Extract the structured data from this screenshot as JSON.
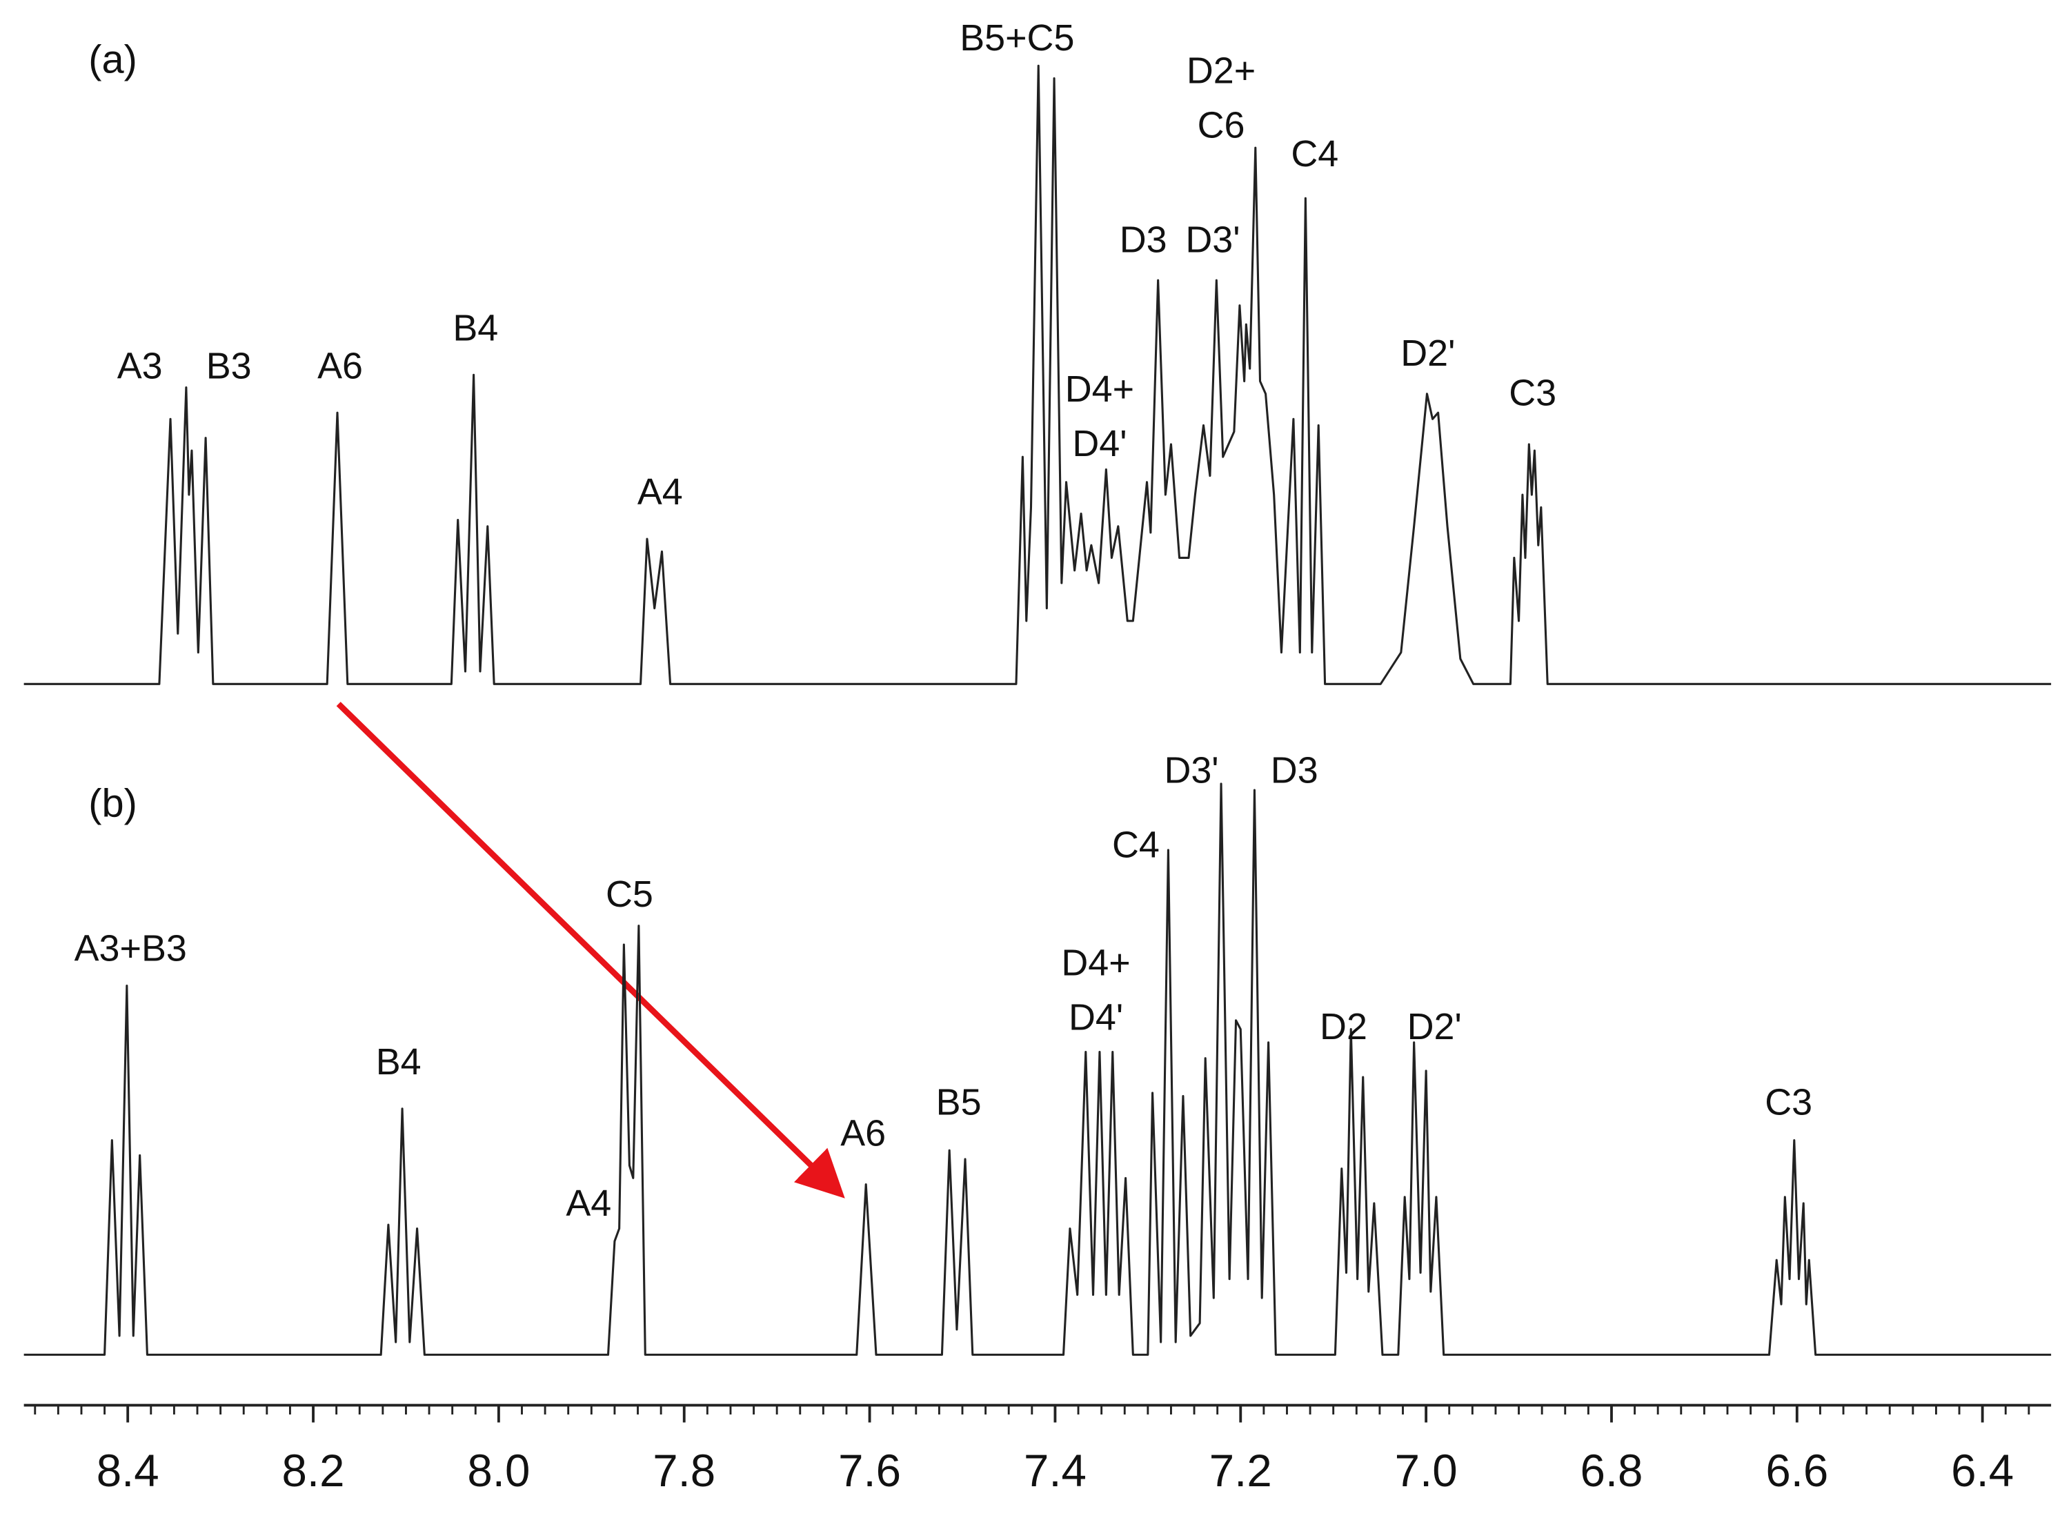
{
  "chart_data": [
    {
      "type": "line",
      "panel_label": "(a)",
      "color": "#222222",
      "xlim": [
        8.512,
        6.326
      ],
      "ylim": [
        0,
        100
      ],
      "x": [
        8.512,
        8.366,
        8.354,
        8.346,
        8.337,
        8.334,
        8.331,
        8.324,
        8.316,
        8.308,
        8.185,
        8.174,
        8.163,
        8.051,
        8.044,
        8.036,
        8.027,
        8.02,
        8.012,
        8.005,
        7.847,
        7.84,
        7.832,
        7.824,
        7.815,
        7.442,
        7.435,
        7.431,
        7.426,
        7.418,
        7.409,
        7.401,
        7.393,
        7.388,
        7.379,
        7.372,
        7.366,
        7.361,
        7.353,
        7.345,
        7.339,
        7.332,
        7.322,
        7.316,
        7.301,
        7.297,
        7.289,
        7.281,
        7.275,
        7.266,
        7.256,
        7.249,
        7.24,
        7.233,
        7.226,
        7.219,
        7.213,
        7.207,
        7.201,
        7.196,
        7.194,
        7.19,
        7.184,
        7.179,
        7.173,
        7.164,
        7.156,
        7.143,
        7.136,
        7.13,
        7.123,
        7.116,
        7.109,
        7.049,
        7.027,
        7.013,
        6.999,
        6.993,
        6.987,
        6.977,
        6.963,
        6.949,
        6.909,
        6.905,
        6.9,
        6.896,
        6.893,
        6.889,
        6.886,
        6.883,
        6.879,
        6.876,
        6.872,
        6.869,
        6.326
      ],
      "values": [
        0,
        0,
        42,
        8,
        47,
        30,
        37,
        5,
        39,
        0,
        0,
        43,
        0,
        0,
        26,
        2,
        49,
        2,
        25,
        0,
        0,
        23,
        12,
        21,
        0,
        0,
        36,
        10,
        28,
        98,
        12,
        96,
        16,
        32,
        18,
        27,
        18,
        22,
        16,
        34,
        20,
        25,
        10,
        10,
        32,
        24,
        64,
        30,
        38,
        20,
        20,
        30,
        41,
        33,
        64,
        36,
        38,
        40,
        60,
        48,
        57,
        50,
        85,
        48,
        46,
        30,
        5,
        42,
        5,
        77,
        5,
        41,
        0,
        0,
        5,
        25,
        46,
        42,
        43,
        25,
        4,
        0,
        0,
        20,
        10,
        30,
        20,
        38,
        30,
        37,
        22,
        28,
        12,
        0,
        0
      ],
      "annotations": [
        {
          "lines": [
            "A3"
          ],
          "x": 8.387,
          "y": 50
        },
        {
          "lines": [
            "B3"
          ],
          "x": 8.291,
          "y": 50
        },
        {
          "lines": [
            "A6"
          ],
          "x": 8.171,
          "y": 50
        },
        {
          "lines": [
            "B4"
          ],
          "x": 8.025,
          "y": 56
        },
        {
          "lines": [
            "A4"
          ],
          "x": 7.826,
          "y": 30
        },
        {
          "lines": [
            "B5+C5"
          ],
          "x": 7.441,
          "y": 102
        },
        {
          "lines": [
            "D4+",
            "D4'"
          ],
          "x": 7.352,
          "y": 46.3
        },
        {
          "lines": [
            "D3"
          ],
          "x": 7.305,
          "y": 70
        },
        {
          "lines": [
            "D3'"
          ],
          "x": 7.23,
          "y": 70
        },
        {
          "lines": [
            "D2+",
            "C6"
          ],
          "x": 7.221,
          "y": 96.8
        },
        {
          "lines": [
            "C4"
          ],
          "x": 7.12,
          "y": 83.6
        },
        {
          "lines": [
            "D2'"
          ],
          "x": 6.998,
          "y": 52
        },
        {
          "lines": [
            "C3"
          ],
          "x": 6.885,
          "y": 45.7
        }
      ]
    },
    {
      "type": "line",
      "panel_label": "(b)",
      "color": "#222222",
      "xlim": [
        8.512,
        6.326
      ],
      "ylim": [
        0,
        100
      ],
      "xticks": [
        8.4,
        8.2,
        {
          "value": 8,
          "label": "8.0"
        },
        7.8,
        7.6,
        7.4,
        7.2,
        {
          "value": 7,
          "label": "7.0"
        },
        6.8,
        6.6,
        6.4
      ],
      "xminor_step": 0.025,
      "x": [
        8.512,
        8.425,
        8.417,
        8.409,
        8.401,
        8.394,
        8.387,
        8.379,
        8.127,
        8.119,
        8.111,
        8.104,
        8.096,
        8.088,
        8.08,
        7.882,
        7.875,
        7.87,
        7.865,
        7.859,
        7.855,
        7.849,
        7.842,
        7.614,
        7.604,
        7.593,
        7.522,
        7.514,
        7.506,
        7.497,
        7.489,
        7.391,
        7.384,
        7.376,
        7.367,
        7.359,
        7.352,
        7.345,
        7.338,
        7.331,
        7.324,
        7.316,
        7.3,
        7.295,
        7.286,
        7.278,
        7.27,
        7.262,
        7.254,
        7.244,
        7.238,
        7.229,
        7.221,
        7.212,
        7.205,
        7.2,
        7.192,
        7.185,
        7.177,
        7.17,
        7.162,
        7.098,
        7.091,
        7.086,
        7.081,
        7.074,
        7.068,
        7.062,
        7.056,
        7.047,
        7.03,
        7.023,
        7.018,
        7.013,
        7.006,
        7.0,
        6.995,
        6.989,
        6.981,
        6.63,
        6.622,
        6.617,
        6.613,
        6.608,
        6.603,
        6.598,
        6.593,
        6.59,
        6.587,
        6.58,
        6.326
      ],
      "values": [
        0,
        0,
        34,
        3,
        58.5,
        3,
        31.6,
        0,
        0,
        20.6,
        2,
        39,
        2,
        20,
        0,
        0,
        18,
        20,
        65,
        30,
        28,
        68,
        0,
        0,
        27,
        0,
        0,
        32.4,
        4,
        31,
        0,
        0,
        20,
        9.5,
        48,
        9.5,
        48,
        9.5,
        48,
        9.5,
        28,
        0,
        0,
        41.5,
        2,
        80,
        2,
        41,
        3,
        5,
        47,
        9,
        90.5,
        12,
        53,
        51.6,
        12,
        89.5,
        9,
        49.5,
        0,
        0,
        29.5,
        13,
        51.6,
        12,
        44,
        10,
        24,
        0,
        0,
        25,
        12,
        49.5,
        13,
        45,
        10,
        25,
        0,
        0,
        15,
        8,
        25,
        12,
        34,
        12,
        24,
        8,
        15,
        0,
        0
      ],
      "annotations": [
        {
          "lines": [
            "A3+B3"
          ],
          "x": 8.397,
          "y": 64
        },
        {
          "lines": [
            "B4"
          ],
          "x": 8.108,
          "y": 46
        },
        {
          "lines": [
            "A4"
          ],
          "x": 7.903,
          "y": 23.6
        },
        {
          "lines": [
            "C5"
          ],
          "x": 7.859,
          "y": 72.6
        },
        {
          "lines": [
            "A6"
          ],
          "x": 7.607,
          "y": 34.7
        },
        {
          "lines": [
            "B5"
          ],
          "x": 7.504,
          "y": 39.6
        },
        {
          "lines": [
            "D4+",
            "D4'"
          ],
          "x": 7.356,
          "y": 61.7
        },
        {
          "lines": [
            "C4"
          ],
          "x": 7.313,
          "y": 80.4
        },
        {
          "lines": [
            "D3'"
          ],
          "x": 7.253,
          "y": 92.2
        },
        {
          "lines": [
            "D3"
          ],
          "x": 7.142,
          "y": 92.2
        },
        {
          "lines": [
            "D2"
          ],
          "x": 7.089,
          "y": 51.6
        },
        {
          "lines": [
            "D2'"
          ],
          "x": 6.991,
          "y": 51.6
        },
        {
          "lines": [
            "C3"
          ],
          "x": 6.609,
          "y": 39.6
        }
      ]
    }
  ]
}
